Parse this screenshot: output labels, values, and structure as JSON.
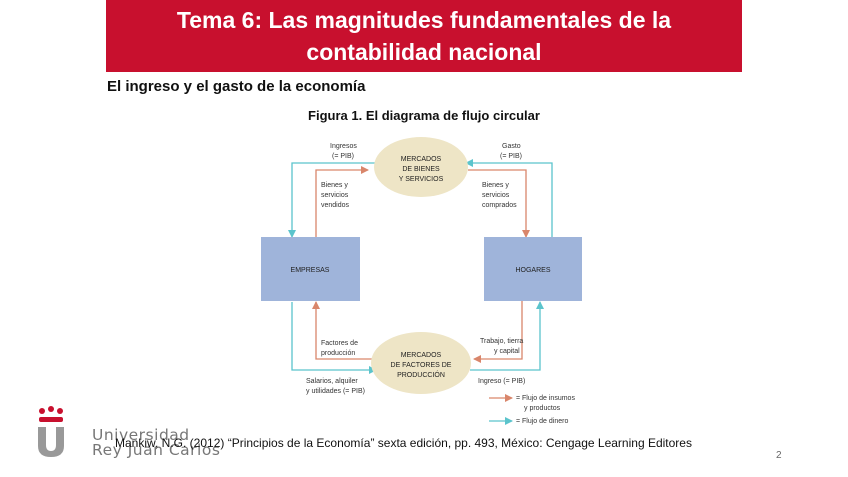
{
  "slide": {
    "title_line1": "Tema 6: Las magnitudes fundamentales de la",
    "title_line2": "contabilidad nacional",
    "subtitle": "El ingreso y el gasto de la economía",
    "figure_title": "Figura 1. El diagrama de flujo circular",
    "citation": "Mankiw, N.G. (2012) “Principios de la Economía” sexta edición, pp. 493, México: Cengage Learning Editores",
    "page_number": "2"
  },
  "logo": {
    "line1": "Universidad",
    "line2": "Rey Juan Carlos"
  },
  "diagram": {
    "market_goods_l1": "MERCADOS",
    "market_goods_l2": "DE BIENES",
    "market_goods_l3": "Y SERVICIOS",
    "market_factors_l1": "MERCADOS",
    "market_factors_l2": "DE FACTORES DE",
    "market_factors_l3": "PRODUCCIÓN",
    "firms": "EMPRESAS",
    "households": "HOGARES",
    "ingresos_l1": "Ingresos",
    "ingresos_l2": "(= PIB)",
    "gasto_l1": "Gasto",
    "gasto_l2": "(= PIB)",
    "bienes_vendidos_l1": "Bienes y",
    "bienes_vendidos_l2": "servicios",
    "bienes_vendidos_l3": "vendidos",
    "bienes_comprados_l1": "Bienes y",
    "bienes_comprados_l2": "servicios",
    "bienes_comprados_l3": "comprados",
    "factores_l1": "Factores de",
    "factores_l2": "producción",
    "trabajo_l1": "Trabajo, tierra",
    "trabajo_l2": "y capital",
    "salarios_l1": "Salarios, alquiler",
    "salarios_l2": "y utilidades (= PIB)",
    "ingreso_pib": "Ingreso (= PIB)",
    "legend_insumos_l1": "= Flujo de insumos",
    "legend_insumos_l2": "y productos",
    "legend_dinero": "= Flujo de dinero",
    "colors": {
      "goods_flow": "#d9866b",
      "money_flow": "#5bc4cc",
      "box": "#9fb4da",
      "ellipse": "#eee5c6",
      "title_band": "#c8102e"
    }
  }
}
